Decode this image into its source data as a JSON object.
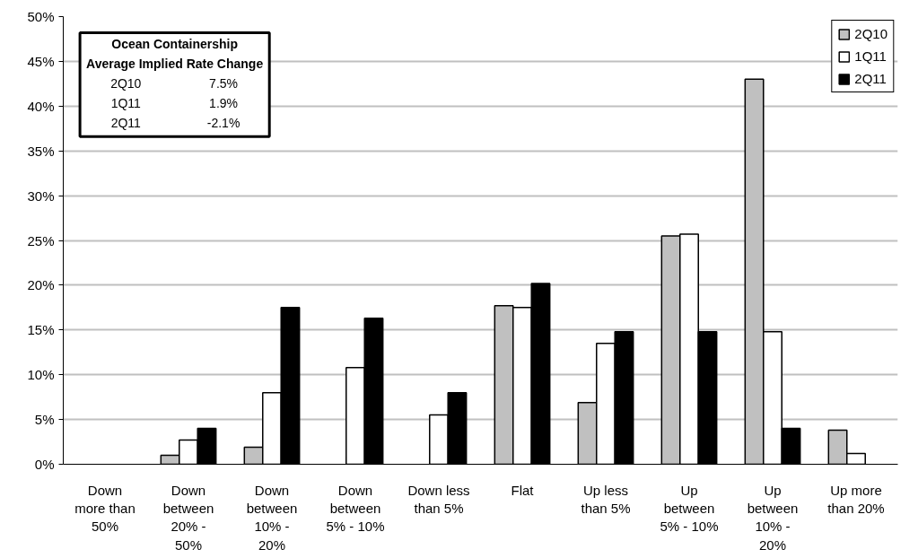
{
  "chart_data": {
    "type": "bar",
    "categories": [
      "Down\nmore than\n50%",
      "Down\nbetween\n20% -\n50%",
      "Down\nbetween\n10% -\n20%",
      "Down\nbetween\n5% - 10%",
      "Down less\nthan 5%",
      "Flat",
      "Up less\nthan 5%",
      "Up\nbetween\n5% - 10%",
      "Up\nbetween\n10% -\n20%",
      "Up more\nthan 20%"
    ],
    "series": [
      {
        "name": "2Q10",
        "color": "#c0c0c0",
        "values": [
          null,
          1.0,
          1.9,
          null,
          null,
          17.7,
          6.9,
          25.5,
          43.0,
          3.8
        ]
      },
      {
        "name": "1Q11",
        "color": "#ffffff",
        "values": [
          null,
          2.7,
          8.0,
          10.8,
          5.5,
          17.5,
          13.5,
          25.7,
          14.8,
          1.2
        ]
      },
      {
        "name": "2Q11",
        "color": "#000000",
        "values": [
          null,
          4.0,
          17.5,
          16.3,
          8.0,
          20.2,
          14.8,
          14.8,
          4.0,
          null
        ]
      }
    ],
    "ylim": [
      0,
      50
    ],
    "yticks": [
      {
        "value": 0,
        "label": "0%"
      },
      {
        "value": 5,
        "label": "5%"
      },
      {
        "value": 10,
        "label": "10%"
      },
      {
        "value": 15,
        "label": "15%"
      },
      {
        "value": 20,
        "label": "20%"
      },
      {
        "value": 25,
        "label": "25%"
      },
      {
        "value": 30,
        "label": "30%"
      },
      {
        "value": 35,
        "label": "35%"
      },
      {
        "value": 40,
        "label": "40%"
      },
      {
        "value": 45,
        "label": "45%"
      },
      {
        "value": 50,
        "label": "50%"
      }
    ],
    "grid": "y",
    "legend": "top right",
    "annotations": [
      "Ocean Containership",
      "Average Implied Rate Change",
      "2Q10 7.5%",
      "1Q11 1.9%",
      "2Q11 -2.1%"
    ]
  }
}
